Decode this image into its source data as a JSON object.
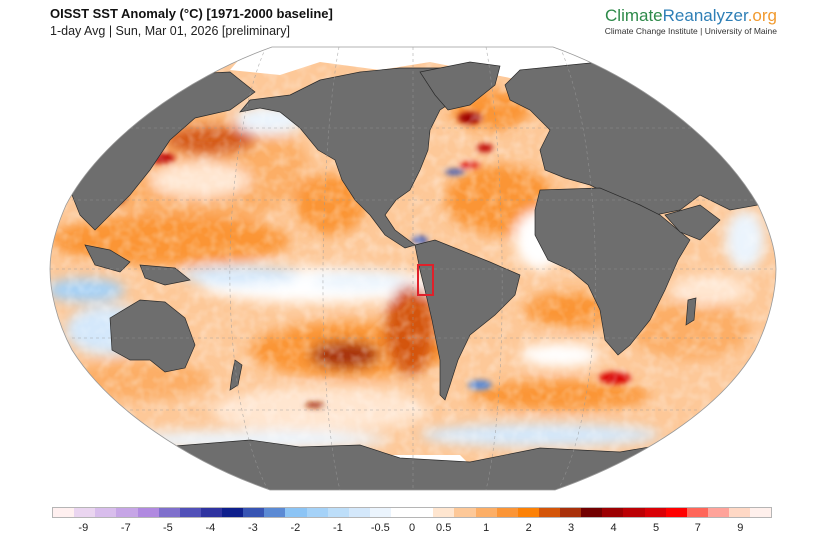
{
  "header": {
    "title": "OISST SST Anomaly (°C) [1971-2000 baseline]",
    "subtitle": "1-day Avg | Sun, Mar 01, 2026 [preliminary]"
  },
  "brand": {
    "name_part1": "Climate",
    "name_part2": "Reanalyzer",
    "name_part3": ".org",
    "tagline": "Climate Change Institute | University of Maine",
    "colors": {
      "climate": "#2e8a4a",
      "reanalyzer": "#2f7fb6",
      "org": "#f19a2f"
    }
  },
  "map": {
    "projection": "Robinson",
    "variable": "Sea Surface Temperature Anomaly",
    "units": "°C",
    "land_color": "#6e6e6e",
    "sea_ice_color": "#ffffff",
    "highlight_box": {
      "label": "highlighted region off Peru/Ecuador coast",
      "color": "#e0202a"
    },
    "notable_features": [
      "Strong warm anomaly in central South Pacific",
      "Warm anomalies across North Pacific",
      "Warm anomalies in western North Atlantic / Labrador Sea",
      "Cool anomalies in equatorial central Pacific",
      "Warm eddies in Southern Ocean south of Africa"
    ]
  },
  "colorbar": {
    "colors": [
      "#fff0f0",
      "#ead5f0",
      "#d8bdec",
      "#c6a5e6",
      "#b089e0",
      "#7f6fcc",
      "#5150b8",
      "#2f33a0",
      "#0e1f8c",
      "#3754b3",
      "#5b8ad4",
      "#8cc4f5",
      "#a5d2f8",
      "#bddef9",
      "#d4e8fb",
      "#ebf4fd",
      "#ffffff",
      "#ffffff",
      "#ffe6d0",
      "#fdc898",
      "#fcae66",
      "#fb9536",
      "#fc8106",
      "#d45508",
      "#a8300a",
      "#720000",
      "#9c0002",
      "#bb0004",
      "#d90006",
      "#ff0000",
      "#ff6659",
      "#ffa39a",
      "#ffd8c5",
      "#fff0ec"
    ],
    "tick_labels": [
      {
        "label": "-9",
        "pos": 0.0435
      },
      {
        "label": "-7",
        "pos": 0.1025
      },
      {
        "label": "-5",
        "pos": 0.161
      },
      {
        "label": "-4",
        "pos": 0.22
      },
      {
        "label": "-3",
        "pos": 0.279
      },
      {
        "label": "-2",
        "pos": 0.338
      },
      {
        "label": "-1",
        "pos": 0.397
      },
      {
        "label": "-0.5",
        "pos": 0.456
      },
      {
        "label": "0",
        "pos": 0.5
      },
      {
        "label": "0.5",
        "pos": 0.544
      },
      {
        "label": "1",
        "pos": 0.603
      },
      {
        "label": "2",
        "pos": 0.662
      },
      {
        "label": "3",
        "pos": 0.721
      },
      {
        "label": "4",
        "pos": 0.78
      },
      {
        "label": "5",
        "pos": 0.839
      },
      {
        "label": "7",
        "pos": 0.897
      },
      {
        "label": "9",
        "pos": 0.956
      }
    ]
  }
}
